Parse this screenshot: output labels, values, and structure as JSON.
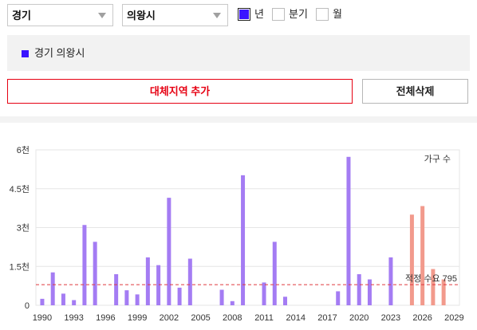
{
  "filters": {
    "province": {
      "value": "경기"
    },
    "city": {
      "value": "의왕시"
    },
    "period_options": [
      {
        "label": "년",
        "checked": true
      },
      {
        "label": "분기",
        "checked": false
      },
      {
        "label": "월",
        "checked": false
      }
    ]
  },
  "legend": {
    "items": [
      {
        "label": "경기 의왕시",
        "color": "#3a14ff"
      }
    ]
  },
  "buttons": {
    "add_region": "대체지역 추가",
    "delete_all": "전체삭제"
  },
  "icons": {
    "dropdown_arrow": "chevron-down-icon"
  },
  "colors": {
    "accent_red": "#e60012",
    "checkbox_checked": "#3a14ff"
  },
  "chart_data": {
    "type": "bar",
    "unit_label": "가구 수",
    "ylim": [
      0,
      6000
    ],
    "yticks": {
      "values": [
        0,
        1500,
        3000,
        4500,
        6000
      ],
      "labels": [
        "0",
        "1.5천",
        "3천",
        "4.5천",
        "6천"
      ]
    },
    "xlim": [
      1989.4,
      2029.5
    ],
    "xticks": {
      "values": [
        1990,
        1993,
        1996,
        1999,
        2002,
        2005,
        2008,
        2011,
        2014,
        2017,
        2020,
        2023,
        2026,
        2029
      ],
      "labels": [
        "1990",
        "1993",
        "1996",
        "1999",
        "2002",
        "2005",
        "2008",
        "2011",
        "2014",
        "2017",
        "2020",
        "2023",
        "2026",
        "2029"
      ]
    },
    "grid": true,
    "series": [
      {
        "color": "#a47cf3",
        "points": [
          {
            "x": 1990,
            "y": 250
          },
          {
            "x": 1991,
            "y": 1270
          },
          {
            "x": 1992,
            "y": 450
          },
          {
            "x": 1993,
            "y": 200
          },
          {
            "x": 1994,
            "y": 3100
          },
          {
            "x": 1995,
            "y": 2450
          },
          {
            "x": 1997,
            "y": 1200
          },
          {
            "x": 1998,
            "y": 580
          },
          {
            "x": 1999,
            "y": 420
          },
          {
            "x": 2000,
            "y": 1850
          },
          {
            "x": 2001,
            "y": 1550
          },
          {
            "x": 2002,
            "y": 4150
          },
          {
            "x": 2003,
            "y": 680
          },
          {
            "x": 2004,
            "y": 1800
          },
          {
            "x": 2007,
            "y": 600
          },
          {
            "x": 2008,
            "y": 160
          },
          {
            "x": 2009,
            "y": 5020
          },
          {
            "x": 2011,
            "y": 880
          },
          {
            "x": 2012,
            "y": 2450
          },
          {
            "x": 2013,
            "y": 330
          },
          {
            "x": 2018,
            "y": 540
          },
          {
            "x": 2019,
            "y": 5730
          },
          {
            "x": 2020,
            "y": 1200
          },
          {
            "x": 2021,
            "y": 1000
          },
          {
            "x": 2023,
            "y": 1850
          }
        ]
      },
      {
        "color": "#f29a8c",
        "points": [
          {
            "x": 2025,
            "y": 3500
          },
          {
            "x": 2026,
            "y": 3830
          },
          {
            "x": 2027,
            "y": 1400
          },
          {
            "x": 2028,
            "y": 1000
          }
        ]
      }
    ],
    "reference_line": {
      "value": 795,
      "label": "적정 수요 795",
      "color": "#e0383e"
    }
  }
}
